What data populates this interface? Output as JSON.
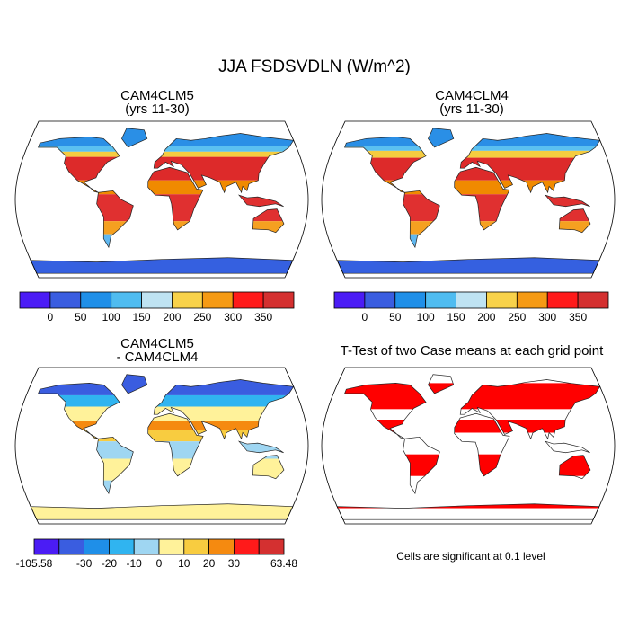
{
  "title": "JJA FSDSVDLN (W/m^2)",
  "panels": [
    {
      "title": "CAM4CLM5",
      "subtitle": "(yrs 11-30)"
    },
    {
      "title": "CAM4CLM4",
      "subtitle": "(yrs 11-30)"
    },
    {
      "title": "CAM4CLM5",
      "subtitle": "- CAM4CLM4"
    },
    {
      "title": "T-Test of two Case means at each grid point"
    }
  ],
  "colorbars": [
    {
      "colors": [
        "#4b1cf5",
        "#3a5de0",
        "#1f8fe8",
        "#4fbcf0",
        "#bfe3f2",
        "#f8d24a",
        "#f59a14",
        "#ff1a1a",
        "#d43030"
      ],
      "labels": [
        0,
        50,
        100,
        150,
        200,
        250,
        300,
        350
      ]
    },
    {
      "colors": [
        "#4b1cf5",
        "#3a5de0",
        "#1f8fe8",
        "#4fbcf0",
        "#bfe3f2",
        "#f8d24a",
        "#f59a14",
        "#ff1a1a",
        "#d43030"
      ],
      "labels": [
        0,
        50,
        100,
        150,
        200,
        250,
        300,
        350
      ]
    },
    {
      "colors": [
        "#4b1cf5",
        "#3a5de0",
        "#1f8fe8",
        "#30b4f0",
        "#9fd6f2",
        "#fff29a",
        "#f8cc40",
        "#f58a10",
        "#ff1a1a",
        "#d43030"
      ],
      "labels": [
        -105.58,
        -30,
        -20,
        -10,
        0,
        10,
        20,
        30,
        63.48
      ]
    }
  ],
  "note": "Cells are significant at 0.1 level"
}
